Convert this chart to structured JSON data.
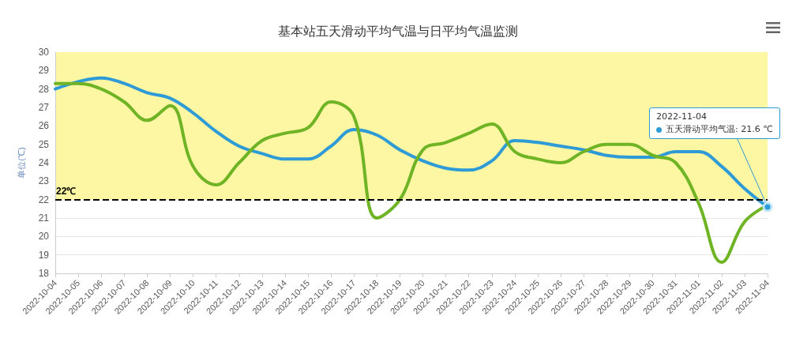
{
  "chart_data": {
    "type": "line",
    "title": "基本站五天滑动平均气温与日平均气温监测",
    "ylabel": "单位(℃)",
    "categories": [
      "2022-10-04",
      "2022-10-05",
      "2022-10-06",
      "2022-10-07",
      "2022-10-08",
      "2022-10-09",
      "2022-10-10",
      "2022-10-11",
      "2022-10-12",
      "2022-10-13",
      "2022-10-14",
      "2022-10-15",
      "2022-10-16",
      "2022-10-17",
      "2022-10-18",
      "2022-10-19",
      "2022-10-20",
      "2022-10-21",
      "2022-10-22",
      "2022-10-23",
      "2022-10-24",
      "2022-10-25",
      "2022-10-26",
      "2022-10-27",
      "2022-10-28",
      "2022-10-29",
      "2022-10-30",
      "2022-10-31",
      "2022-11-01",
      "2022-11-02",
      "2022-11-03",
      "2022-11-04"
    ],
    "series": [
      {
        "color": "#2e9bd6",
        "values": [
          28.0,
          28.4,
          28.6,
          28.3,
          27.8,
          27.5,
          26.7,
          25.7,
          24.9,
          24.5,
          24.2,
          24.2,
          24.9,
          25.8,
          25.5,
          24.7,
          24.1,
          23.7,
          23.6,
          24.1,
          25.2,
          25.1,
          24.9,
          24.7,
          24.4,
          24.3,
          24.3,
          24.6,
          24.6,
          23.8,
          22.6,
          21.6
        ]
      },
      {
        "color": "#6fb424",
        "values": [
          28.3,
          28.3,
          28.0,
          27.3,
          26.3,
          27.1,
          23.8,
          22.8,
          24.0,
          25.2,
          25.6,
          25.9,
          27.3,
          26.5,
          21.0,
          22.0,
          24.7,
          25.1,
          25.6,
          26.1,
          24.6,
          24.2,
          24.0,
          24.6,
          25.0,
          25.0,
          24.4,
          24.0,
          21.8,
          18.6,
          20.8,
          21.7
        ]
      }
    ],
    "ylim": [
      18,
      30
    ],
    "yticks": [
      18,
      19,
      20,
      21,
      22,
      23,
      24,
      25,
      26,
      27,
      28,
      29,
      30
    ],
    "grid": "y",
    "marker": "none",
    "line_style": "solid",
    "ref_lines": [
      {
        "axis": "y",
        "value": 22,
        "label": "22℃",
        "color": "#000000",
        "line_style": "dashed"
      }
    ],
    "bands": [
      {
        "axis": "y",
        "from": 22,
        "to": 30,
        "color": "#fdf6a3"
      }
    ],
    "annotations": [
      {
        "text": "2022-11-04\n五天滑动平均气温: 21.6 ℃",
        "x": "2022-11-04",
        "y": 21.6
      }
    ]
  }
}
